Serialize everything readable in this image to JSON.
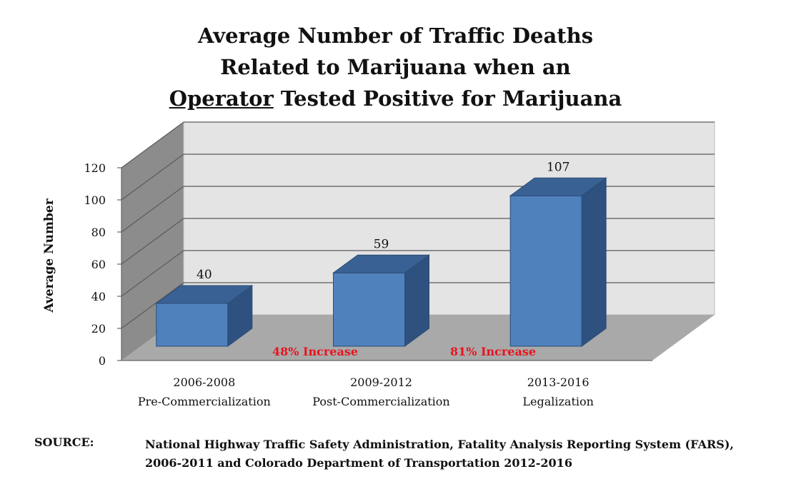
{
  "chart_data": {
    "type": "bar",
    "title_lines": [
      "Average Number of Traffic Deaths",
      "Related to Marijuana when an"
    ],
    "title_underlined_word": "Operator",
    "title_line3_rest": " Tested Positive for Marijuana",
    "ylabel": "Average Number",
    "ylim": [
      0,
      120
    ],
    "yticks": [
      0,
      20,
      40,
      60,
      80,
      100,
      120
    ],
    "categories": [
      {
        "period": "2006-2008",
        "label": "Pre-Commercialization"
      },
      {
        "period": "2009-2012",
        "label": "Post-Commercialization"
      },
      {
        "period": "2013-2016",
        "label": "Legalization"
      }
    ],
    "values": [
      40,
      59,
      107
    ],
    "annotations": [
      "48% Increase",
      "81% Increase"
    ],
    "colors": {
      "bar_front": "#4F81BD",
      "bar_top": "#3A6193",
      "bar_side": "#2E5180",
      "annotation": "#E8141E",
      "back_wall": "#E4E4E4",
      "side_wall": "#8C8C8C",
      "floor": "#A9A9A9"
    }
  },
  "source": {
    "label": "SOURCE:",
    "lines": [
      "National Highway Traffic Safety Administration, Fatality Analysis Reporting System (FARS),",
      "2006-2011 and Colorado Department of Transportation 2012-2016"
    ]
  }
}
